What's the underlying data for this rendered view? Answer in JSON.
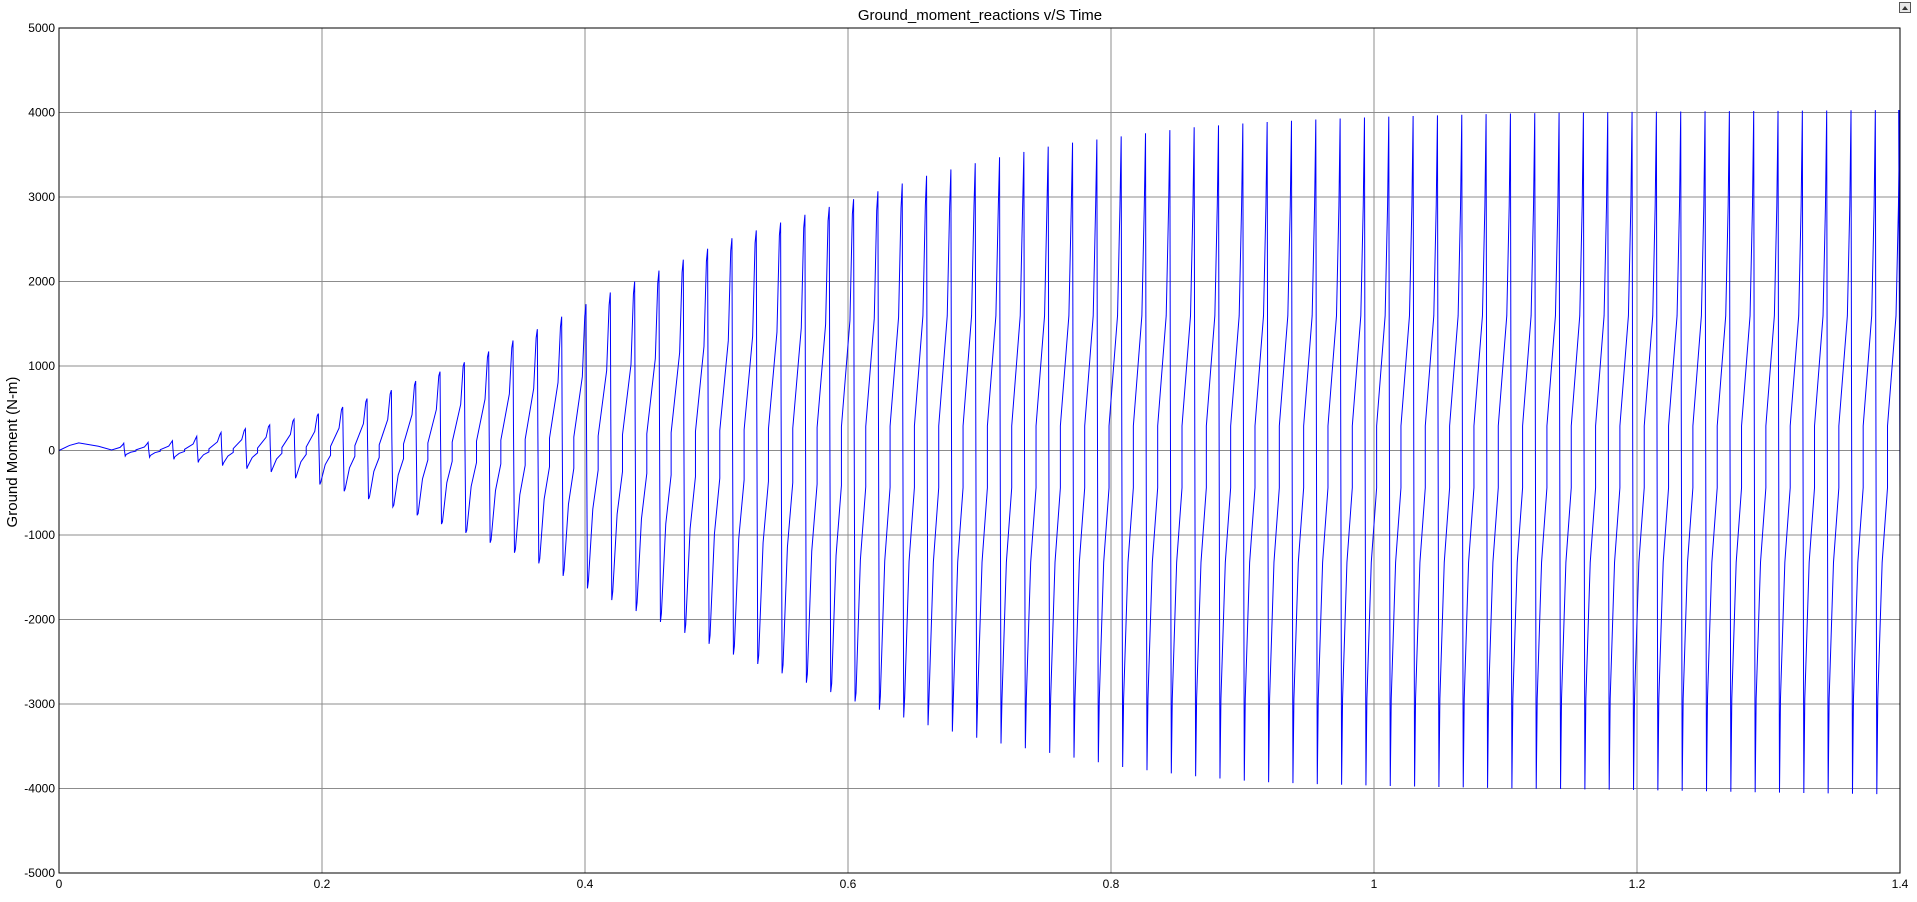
{
  "chart_data": {
    "type": "line",
    "title": "Ground_moment_reactions v/S Time",
    "xlabel": "",
    "ylabel": "Ground Moment (N-m)",
    "xlim": [
      0,
      1.4
    ],
    "ylim": [
      -5000,
      5000
    ],
    "x_ticks": [
      "0",
      "0.2",
      "0.4",
      "0.6",
      "0.8",
      "1",
      "1.2",
      "1.4"
    ],
    "y_ticks": [
      "5000",
      "4000",
      "3000",
      "2000",
      "1000",
      "0",
      "-1000",
      "-2000",
      "-3000",
      "-4000",
      "-5000"
    ],
    "grid": true,
    "line_color": "#0000ff",
    "series": [
      {
        "cycle_period": 0.0185,
        "envelope_t": [
          0.02,
          0.05,
          0.075,
          0.1,
          0.15,
          0.2,
          0.25,
          0.3,
          0.35,
          0.4,
          0.45,
          0.5,
          0.55,
          0.6,
          0.65,
          0.7,
          0.75,
          0.8,
          0.85,
          0.9,
          0.95,
          1.0,
          1.1,
          1.2,
          1.3,
          1.39
        ],
        "envelope_max": [
          80,
          90,
          110,
          180,
          300,
          480,
          750,
          1050,
          1400,
          1800,
          2150,
          2500,
          2750,
          3000,
          3250,
          3450,
          3620,
          3720,
          3820,
          3880,
          3920,
          3950,
          3990,
          4010,
          4020,
          4030
        ],
        "envelope_mid": [
          60,
          70,
          90,
          150,
          280,
          450,
          700,
          1000,
          1300,
          1650,
          2000,
          2350,
          2600,
          2820,
          2900,
          2900,
          2900,
          2900,
          2900,
          2900,
          2900,
          2900,
          2900,
          2900,
          2900,
          2900
        ],
        "envelope_min": [
          -60,
          -70,
          -100,
          -150,
          -250,
          -450,
          -700,
          -980,
          -1300,
          -1700,
          -2050,
          -2400,
          -2700,
          -3000,
          -3250,
          -3450,
          -3600,
          -3750,
          -3850,
          -3920,
          -3950,
          -3970,
          -4000,
          -4020,
          -4050,
          -4070
        ],
        "envelope_low_mid": [
          -40,
          -50,
          -70,
          -120,
          -220,
          -420,
          -680,
          -950,
          -1250,
          -1600,
          -1950,
          -2300,
          -2600,
          -2900,
          -2930,
          -2940,
          -2940,
          -2940,
          -2940,
          -2940,
          -2940,
          -2940,
          -2940,
          -2940,
          -2940,
          -2940
        ]
      }
    ]
  }
}
